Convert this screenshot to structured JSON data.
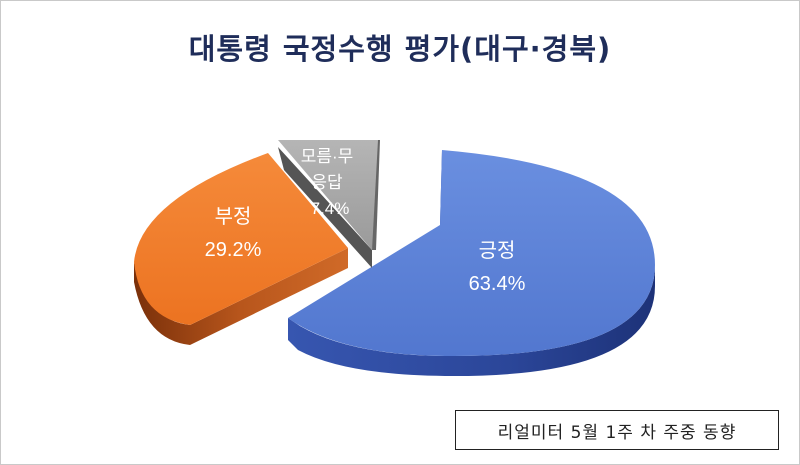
{
  "title": "대통령 국정수행 평가(대구·경북)",
  "source_note": "리얼미터 5월 1주 차 주중 동향",
  "colors": {
    "positive_top": "#5b82d9",
    "positive_side": "#2c4a9e",
    "negative_top": "#f07c2c",
    "negative_side": "#8a3a10",
    "unknown_top": "#a6a6a6",
    "unknown_side": "#555555"
  },
  "chart_data": {
    "type": "pie",
    "style": "3d-exploded",
    "title": "대통령 국정수행 평가(대구·경북)",
    "slices": [
      {
        "label": "긍정",
        "value": 63.4,
        "display": "63.4%"
      },
      {
        "label": "부정",
        "value": 29.2,
        "display": "29.2%"
      },
      {
        "label": "모름·무응답",
        "label_lines": [
          "모름·무",
          "응답"
        ],
        "value": 7.4,
        "display": "7.4%"
      }
    ]
  }
}
